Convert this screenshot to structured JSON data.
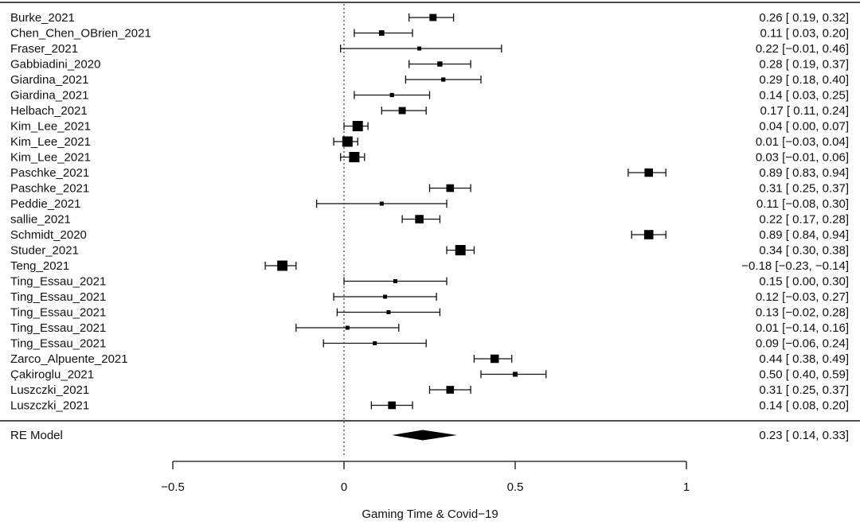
{
  "chart_data": {
    "type": "forest",
    "xlabel": "Gaming Time & Covid−19",
    "xlim": [
      -0.5,
      1.0
    ],
    "xticks": [
      -0.5,
      0,
      0.5,
      1
    ],
    "xtick_labels": [
      "−0.5",
      "0",
      "0.5",
      "1"
    ],
    "null_line": 0,
    "studies": [
      {
        "label": "Burke_2021",
        "est": 0.26,
        "lo": 0.19,
        "hi": 0.32,
        "text": "0.26 [ 0.19,  0.32]"
      },
      {
        "label": "Chen_Chen_OBrien_2021",
        "est": 0.11,
        "lo": 0.03,
        "hi": 0.2,
        "text": "0.11 [ 0.03,  0.20]"
      },
      {
        "label": "Fraser_2021",
        "est": 0.22,
        "lo": -0.01,
        "hi": 0.46,
        "text": "0.22 [−0.01,  0.46]"
      },
      {
        "label": "Gabbiadini_2020",
        "est": 0.28,
        "lo": 0.19,
        "hi": 0.37,
        "text": "0.28 [ 0.19,  0.37]"
      },
      {
        "label": "Giardina_2021",
        "est": 0.29,
        "lo": 0.18,
        "hi": 0.4,
        "text": "0.29 [ 0.18,  0.40]"
      },
      {
        "label": "Giardina_2021",
        "est": 0.14,
        "lo": 0.03,
        "hi": 0.25,
        "text": "0.14 [ 0.03,  0.25]"
      },
      {
        "label": "Helbach_2021",
        "est": 0.17,
        "lo": 0.11,
        "hi": 0.24,
        "text": "0.17 [ 0.11,  0.24]"
      },
      {
        "label": "Kim_Lee_2021",
        "est": 0.04,
        "lo": 0.0,
        "hi": 0.07,
        "text": "0.04 [ 0.00,  0.07]"
      },
      {
        "label": "Kim_Lee_2021",
        "est": 0.01,
        "lo": -0.03,
        "hi": 0.04,
        "text": "0.01 [−0.03,  0.04]"
      },
      {
        "label": "Kim_Lee_2021",
        "est": 0.03,
        "lo": -0.01,
        "hi": 0.06,
        "text": "0.03 [−0.01,  0.06]"
      },
      {
        "label": "Paschke_2021",
        "est": 0.89,
        "lo": 0.83,
        "hi": 0.94,
        "text": "0.89 [ 0.83,  0.94]"
      },
      {
        "label": "Paschke_2021",
        "est": 0.31,
        "lo": 0.25,
        "hi": 0.37,
        "text": "0.31 [ 0.25,  0.37]"
      },
      {
        "label": "Peddie_2021",
        "est": 0.11,
        "lo": -0.08,
        "hi": 0.3,
        "text": "0.11 [−0.08,  0.30]"
      },
      {
        "label": "sallie_2021",
        "est": 0.22,
        "lo": 0.17,
        "hi": 0.28,
        "text": "0.22 [ 0.17,  0.28]"
      },
      {
        "label": "Schmidt_2020",
        "est": 0.89,
        "lo": 0.84,
        "hi": 0.94,
        "text": "0.89 [ 0.84,  0.94]"
      },
      {
        "label": "Studer_2021",
        "est": 0.34,
        "lo": 0.3,
        "hi": 0.38,
        "text": "0.34 [ 0.30,  0.38]"
      },
      {
        "label": "Teng_2021",
        "est": -0.18,
        "lo": -0.23,
        "hi": -0.14,
        "text": "−0.18 [−0.23, −0.14]"
      },
      {
        "label": "Ting_Essau_2021",
        "est": 0.15,
        "lo": 0.0,
        "hi": 0.3,
        "text": "0.15 [ 0.00,  0.30]"
      },
      {
        "label": "Ting_Essau_2021",
        "est": 0.12,
        "lo": -0.03,
        "hi": 0.27,
        "text": "0.12 [−0.03,  0.27]"
      },
      {
        "label": "Ting_Essau_2021",
        "est": 0.13,
        "lo": -0.02,
        "hi": 0.28,
        "text": "0.13 [−0.02,  0.28]"
      },
      {
        "label": "Ting_Essau_2021",
        "est": 0.01,
        "lo": -0.14,
        "hi": 0.16,
        "text": "0.01 [−0.14,  0.16]"
      },
      {
        "label": "Ting_Essau_2021",
        "est": 0.09,
        "lo": -0.06,
        "hi": 0.24,
        "text": "0.09 [−0.06,  0.24]"
      },
      {
        "label": "Zarco_Alpuente_2021",
        "est": 0.44,
        "lo": 0.38,
        "hi": 0.49,
        "text": "0.44 [ 0.38,  0.49]"
      },
      {
        "label": "Çakiroglu_2021",
        "est": 0.5,
        "lo": 0.4,
        "hi": 0.59,
        "text": "0.50 [ 0.40,  0.59]"
      },
      {
        "label": "Luszczki_2021",
        "est": 0.31,
        "lo": 0.25,
        "hi": 0.37,
        "text": "0.31 [ 0.25,  0.37]"
      },
      {
        "label": "Luszczki_2021",
        "est": 0.14,
        "lo": 0.08,
        "hi": 0.2,
        "text": "0.14 [ 0.08,  0.20]"
      }
    ],
    "summary": {
      "label": "RE Model",
      "est": 0.23,
      "lo": 0.14,
      "hi": 0.33,
      "text": "0.23 [ 0.14,  0.33]"
    }
  }
}
